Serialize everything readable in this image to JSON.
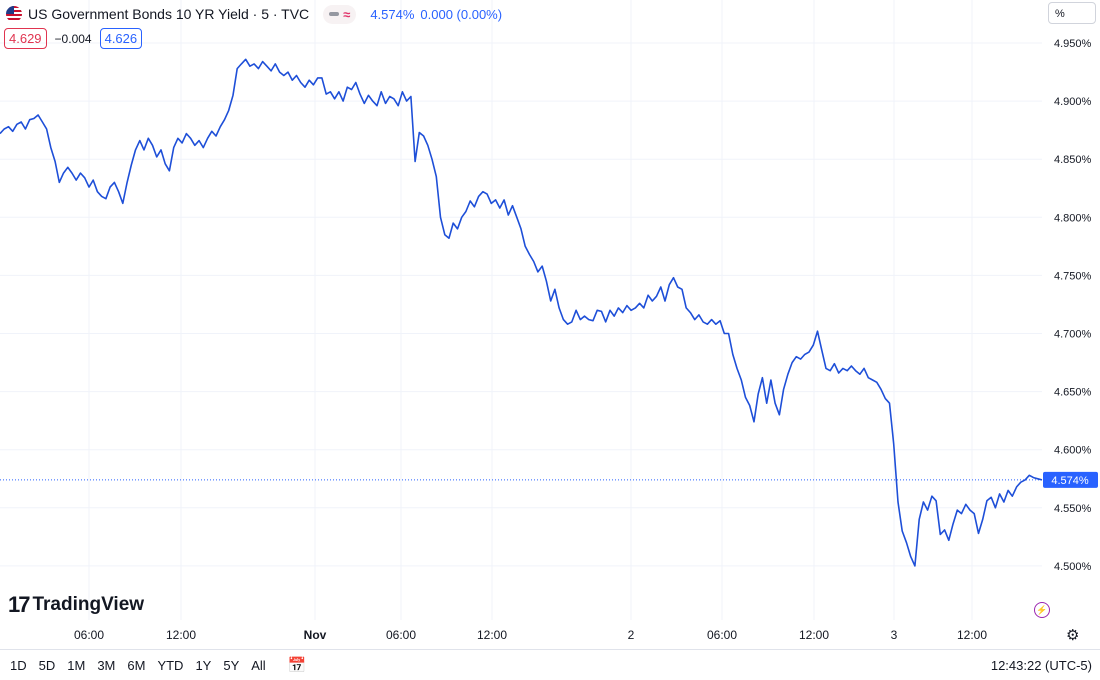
{
  "header": {
    "title": "US Government Bonds 10 YR Yield · 5 · TVC",
    "quote_value": "4.574%",
    "quote_change": "0.000 (0.00%)",
    "approx_symbol": "≈",
    "bid": "4.629",
    "spread": "−0.004",
    "ask": "4.626",
    "unit": "%"
  },
  "brand": {
    "logo_text": "TradingView"
  },
  "bottom": {
    "ranges": [
      "1D",
      "5D",
      "1M",
      "3M",
      "6M",
      "YTD",
      "1Y",
      "5Y",
      "All"
    ],
    "clock": "12:43:22 (UTC-5)"
  },
  "colors": {
    "line": "#1e4fd8",
    "accent": "#2962ff",
    "grid": "#f0f3fa"
  },
  "chart_data": {
    "type": "line",
    "ylim": [
      4.46,
      4.98
    ],
    "y_ticks": [
      "4.950%",
      "4.900%",
      "4.850%",
      "4.800%",
      "4.750%",
      "4.700%",
      "4.650%",
      "4.600%",
      "4.550%",
      "4.500%"
    ],
    "x_ticks": [
      "06:00",
      "12:00",
      "Nov",
      "06:00",
      "12:00",
      "2",
      "06:00",
      "12:00",
      "3",
      "12:00"
    ],
    "last_price_label": "4.574%",
    "last_price": 4.574,
    "series": [
      {
        "values": [
          4.872,
          4.876,
          4.878,
          4.874,
          4.88,
          4.882,
          4.876,
          4.884,
          4.885,
          4.888,
          4.882,
          4.876,
          4.86,
          4.848,
          4.83,
          4.838,
          4.843,
          4.838,
          4.832,
          4.838,
          4.834,
          4.826,
          4.832,
          4.822,
          4.818,
          4.816,
          4.826,
          4.83,
          4.822,
          4.812,
          4.83,
          4.845,
          4.858,
          4.866,
          4.858,
          4.868,
          4.862,
          4.852,
          4.858,
          4.846,
          4.84,
          4.86,
          4.868,
          4.864,
          4.872,
          4.868,
          4.862,
          4.866,
          4.86,
          4.868,
          4.874,
          4.87,
          4.878,
          4.884,
          4.892,
          4.905,
          4.928,
          4.932,
          4.936,
          4.93,
          4.932,
          4.928,
          4.934,
          4.93,
          4.926,
          4.932,
          4.925,
          4.922,
          4.925,
          4.918,
          4.922,
          4.916,
          4.912,
          4.918,
          4.914,
          4.92,
          4.92,
          4.906,
          4.908,
          4.902,
          4.908,
          4.9,
          4.912,
          4.91,
          4.916,
          4.906,
          4.898,
          4.905,
          4.9,
          4.896,
          4.908,
          4.898,
          4.904,
          4.902,
          4.896,
          4.908,
          4.9,
          4.904,
          4.848,
          4.873,
          4.87,
          4.862,
          4.85,
          4.835,
          4.8,
          4.785,
          4.782,
          4.795,
          4.79,
          4.8,
          4.805,
          4.814,
          4.809,
          4.818,
          4.822,
          4.82,
          4.812,
          4.815,
          4.808,
          4.815,
          4.802,
          4.81,
          4.8,
          4.79,
          4.775,
          4.768,
          4.762,
          4.753,
          4.758,
          4.745,
          4.728,
          4.738,
          4.722,
          4.712,
          4.708,
          4.71,
          4.72,
          4.712,
          4.715,
          4.712,
          4.711,
          4.72,
          4.719,
          4.71,
          4.72,
          4.715,
          4.722,
          4.718,
          4.724,
          4.72,
          4.722,
          4.726,
          4.722,
          4.733,
          4.728,
          4.732,
          4.74,
          4.728,
          4.742,
          4.748,
          4.74,
          4.738,
          4.722,
          4.718,
          4.712,
          4.716,
          4.71,
          4.708,
          4.712,
          4.708,
          4.711,
          4.7,
          4.7,
          4.682,
          4.67,
          4.66,
          4.645,
          4.638,
          4.624,
          4.648,
          4.662,
          4.64,
          4.66,
          4.64,
          4.63,
          4.652,
          4.665,
          4.675,
          4.68,
          4.678,
          4.682,
          4.684,
          4.69,
          4.702,
          4.686,
          4.67,
          4.668,
          4.674,
          4.666,
          4.67,
          4.668,
          4.672,
          4.668,
          4.665,
          4.67,
          4.662,
          4.66,
          4.658,
          4.652,
          4.644,
          4.64,
          4.605,
          4.555,
          4.53,
          4.52,
          4.508,
          4.5,
          4.54,
          4.555,
          4.548,
          4.56,
          4.556,
          4.527,
          4.531,
          4.522,
          4.536,
          4.548,
          4.545,
          4.553,
          4.548,
          4.545,
          4.528,
          4.54,
          4.556,
          4.559,
          4.55,
          4.562,
          4.555,
          4.565,
          4.56,
          4.568,
          4.572,
          4.574,
          4.578,
          4.576,
          4.575,
          4.574
        ]
      }
    ]
  }
}
